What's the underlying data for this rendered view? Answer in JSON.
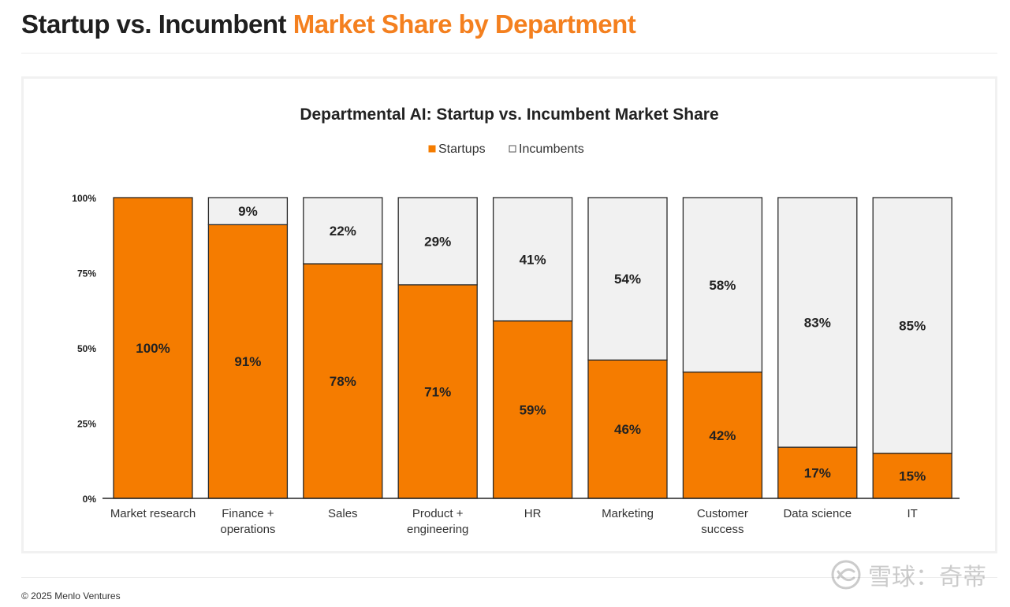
{
  "header": {
    "title_dark": "Startup vs. Incumbent",
    "title_accent": "Market Share by Department"
  },
  "footer": {
    "copyright": "© 2025 Menlo Ventures"
  },
  "watermark": {
    "text": "雪球：奇蒂"
  },
  "colors": {
    "startups": "#f57c00",
    "incumbents": "#f1f1f1",
    "bar_stroke": "#2a2a2a",
    "accent": "#f4801f"
  },
  "chart_data": {
    "type": "bar",
    "stacked": true,
    "title": "Departmental AI: Startup vs. Incumbent Market Share",
    "xlabel": "",
    "ylabel": "",
    "ylim": [
      0,
      100
    ],
    "yticks": [
      0,
      25,
      50,
      75,
      100
    ],
    "ytick_labels": [
      "0%",
      "25%",
      "50%",
      "75%",
      "100%"
    ],
    "legend_position": "top-center",
    "grid": false,
    "categories": [
      "Market research",
      "Finance + operations",
      "Sales",
      "Product + engineering",
      "HR",
      "Marketing",
      "Customer success",
      "Data science",
      "IT"
    ],
    "category_lines": [
      [
        "Market research"
      ],
      [
        "Finance +",
        "operations"
      ],
      [
        "Sales"
      ],
      [
        "Product +",
        "engineering"
      ],
      [
        "HR"
      ],
      [
        "Marketing"
      ],
      [
        "Customer",
        "success"
      ],
      [
        "Data science"
      ],
      [
        "IT"
      ]
    ],
    "series": [
      {
        "name": "Startups",
        "values": [
          100,
          91,
          78,
          71,
          59,
          46,
          42,
          17,
          15
        ],
        "labels": [
          "100%",
          "91%",
          "78%",
          "71%",
          "59%",
          "46%",
          "42%",
          "17%",
          "15%"
        ]
      },
      {
        "name": "Incumbents",
        "values": [
          0,
          9,
          22,
          29,
          41,
          54,
          58,
          83,
          85
        ],
        "labels": [
          "",
          "9%",
          "22%",
          "29%",
          "41%",
          "54%",
          "58%",
          "83%",
          "85%"
        ]
      }
    ]
  }
}
